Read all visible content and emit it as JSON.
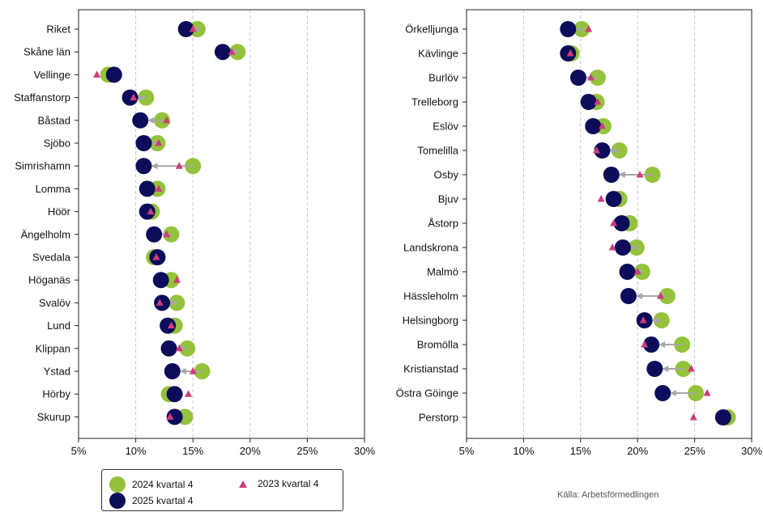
{
  "colors": {
    "series_2024": "#94c23c",
    "series_2025": "#0c0c5a",
    "series_2023": "#cc3d7a",
    "arrow": "#a6a6a6",
    "grid": "#c8c8c8",
    "axis": "#222222"
  },
  "legend": {
    "s2024": "2024 kvartal 4",
    "s2025": "2025 kvartal 4",
    "s2023": "2023 kvartal 4"
  },
  "source": "Källa: Arbetsförmedlingen",
  "chart_data": [
    {
      "type": "scatter",
      "orientation": "dot-plot",
      "xlim": [
        5,
        30
      ],
      "xticks": [
        "5%",
        "10%",
        "15%",
        "20%",
        "25%",
        "30%"
      ],
      "grid": "vertical dashed",
      "categories": [
        "Riket",
        "Skåne län",
        "Vellinge",
        "Staffanstorp",
        "Båstad",
        "Sjöbo",
        "Simrishamn",
        "Lomma",
        "Höör",
        "Ängelholm",
        "Svedala",
        "Höganäs",
        "Svalöv",
        "Lund",
        "Klippan",
        "Ystad",
        "Hörby",
        "Skurup"
      ],
      "series": [
        {
          "name": "2024 kvartal 4",
          "values": [
            15.4,
            18.9,
            7.6,
            10.9,
            12.3,
            11.9,
            15.0,
            11.9,
            11.4,
            13.1,
            11.6,
            13.1,
            13.6,
            13.4,
            14.5,
            15.8,
            12.9,
            14.3
          ]
        },
        {
          "name": "2025 kvartal 4",
          "values": [
            14.4,
            17.6,
            8.1,
            9.5,
            10.4,
            10.7,
            10.7,
            11.0,
            11.0,
            11.6,
            11.9,
            12.2,
            12.3,
            12.8,
            12.9,
            13.2,
            13.4,
            13.4
          ]
        },
        {
          "name": "2023 kvartal 4",
          "values": [
            15.0,
            18.4,
            6.6,
            9.8,
            12.7,
            12.0,
            13.8,
            12.0,
            11.3,
            12.7,
            11.8,
            13.6,
            12.1,
            13.1,
            13.8,
            15.0,
            14.6,
            13.0
          ]
        }
      ]
    },
    {
      "type": "scatter",
      "orientation": "dot-plot",
      "xlim": [
        5,
        30
      ],
      "xticks": [
        "5%",
        "10%",
        "15%",
        "20%",
        "25%",
        "30%"
      ],
      "grid": "vertical dashed",
      "categories": [
        "Örkelljunga",
        "Kävlinge",
        "Burlöv",
        "Trelleborg",
        "Eslöv",
        "Tomelilla",
        "Osby",
        "Bjuv",
        "Åstorp",
        "Landskrona",
        "Malmö",
        "Hässleholm",
        "Helsingborg",
        "Bromölla",
        "Kristianstad",
        "Östra Göinge",
        "Perstorp"
      ],
      "series": [
        {
          "name": "2024 kvartal 4",
          "values": [
            15.1,
            14.2,
            16.5,
            16.4,
            17.0,
            18.4,
            21.3,
            18.4,
            19.3,
            19.9,
            20.4,
            22.6,
            22.1,
            23.9,
            24.0,
            25.1,
            27.9
          ]
        },
        {
          "name": "2025 kvartal 4",
          "values": [
            13.9,
            13.9,
            14.8,
            15.7,
            16.1,
            16.9,
            17.7,
            17.9,
            18.6,
            18.7,
            19.1,
            19.2,
            20.6,
            21.2,
            21.5,
            22.2,
            27.5
          ]
        },
        {
          "name": "2023 kvartal 4",
          "values": [
            15.7,
            14.1,
            15.9,
            16.5,
            16.9,
            16.4,
            20.2,
            16.8,
            17.9,
            17.8,
            20.0,
            22.0,
            20.5,
            20.6,
            24.7,
            26.1,
            24.9
          ]
        }
      ]
    }
  ]
}
